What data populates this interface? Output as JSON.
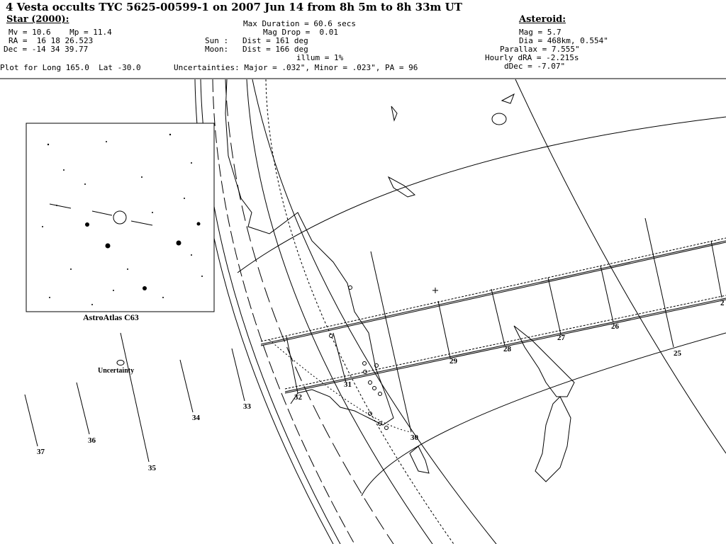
{
  "title": "4 Vesta occults TYC 5625-00599-1 on 2007 Jun 14 from 8h 5m to 8h 33m UT",
  "star": {
    "heading": "Star (2000):",
    "mags": "Mv = 10.6    Mp = 11.4",
    "ra": "RA =  16 18 26.523",
    "dec": "Dec = -14 34 39.77"
  },
  "event": {
    "max_duration": "Max Duration = 60.6 secs",
    "mag_drop": "Mag Drop =  0.01",
    "sun": "Sun :   Dist = 161 deg",
    "moon": "Moon:   Dist = 166 deg",
    "illum": "illum = 1%"
  },
  "asteroid": {
    "heading": "Asteroid:",
    "mag": "Mag = 5.7",
    "dia": "Dia = 468km, 0.554\"",
    "parallax": "Parallax = 7.555\"",
    "hourly_dra": "Hourly dRA = -2.215s",
    "ddec": "dDec = -7.07\""
  },
  "plot_for": "Plot for Long 165.0  Lat -30.0",
  "uncertainties": "Uncertainties: Major = .032\", Minor = .023\", PA = 96",
  "inset_label": "AstroAtlas C63",
  "uncertainty_label": "Uncertainty",
  "time_labels": [
    "37",
    "36",
    "35",
    "34",
    "33",
    "32",
    "31",
    "30",
    "29",
    "28",
    "27",
    "26",
    "25",
    "2"
  ]
}
